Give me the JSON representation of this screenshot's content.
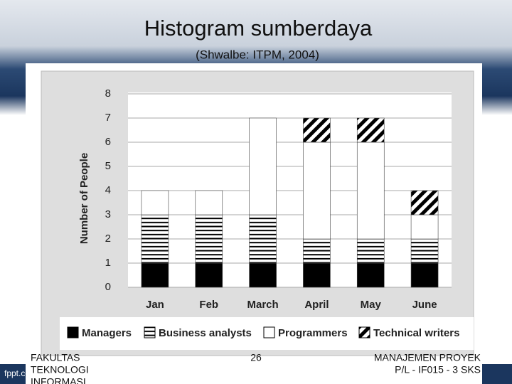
{
  "header": {
    "title": "Histogram sumberdaya",
    "subtitle": "(Shwalbe: ITPM, 2004)"
  },
  "chart_data": {
    "type": "stacked_bar",
    "ylabel": "Number of People",
    "categories": [
      "Jan",
      "Feb",
      "March",
      "April",
      "May",
      "June"
    ],
    "series": [
      {
        "name": "Managers",
        "color": "#000000",
        "pattern": "solid",
        "values": [
          1,
          1,
          1,
          1,
          1,
          1
        ]
      },
      {
        "name": "Business analysts",
        "color": "#000000",
        "pattern": "horizontal",
        "values": [
          2,
          2,
          2,
          1,
          1,
          1
        ]
      },
      {
        "name": "Programmers",
        "color": "#ffffff",
        "pattern": "solid",
        "values": [
          1,
          1,
          4,
          4,
          4,
          1
        ]
      },
      {
        "name": "Technical writers",
        "color": "#000000",
        "pattern": "diagonal",
        "values": [
          0,
          0,
          0,
          1,
          1,
          1
        ]
      }
    ],
    "ylim": [
      0,
      8
    ],
    "yticks": [
      0,
      1,
      2,
      3,
      4,
      5,
      6,
      7,
      8
    ],
    "grid": true,
    "legend": "bottom"
  },
  "footer": {
    "left": [
      "FAKULTAS",
      "TEKNOLOGI",
      "INFORMASI"
    ],
    "page": "26",
    "right": [
      "MANAJEMEN PROYEK",
      "P/L - IF015 - 3 SKS"
    ],
    "brand": "fppt.com"
  }
}
